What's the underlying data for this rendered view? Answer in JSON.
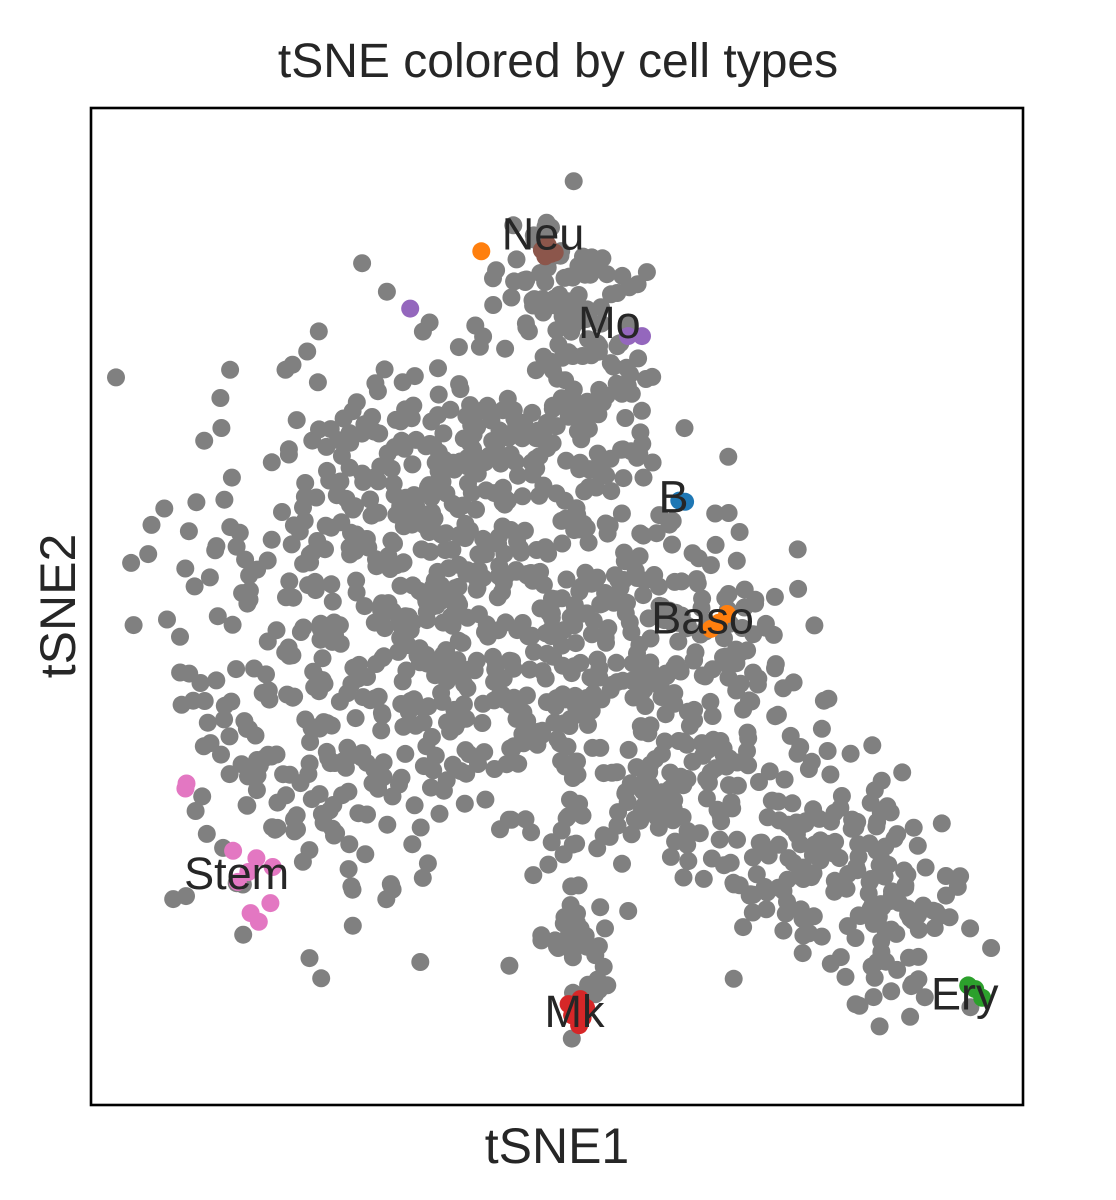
{
  "chart_data": {
    "type": "scatter",
    "title": "tSNE colored by cell types",
    "xlabel": "tSNE1",
    "ylabel": "tSNE2",
    "xlim": [
      -40,
      40
    ],
    "ylim": [
      -40,
      40
    ],
    "grid": false,
    "legend": "none (labels placed on clusters)",
    "background_color": "#808080",
    "background_cells": 1400,
    "clusters": [
      {
        "name": "Neu",
        "color": "#8c564b",
        "label_pos": [
          -1.2,
          29.6
        ],
        "x": [
          -1.3,
          -0.8,
          -0.2,
          -1.0,
          -0.5
        ],
        "y": [
          28.6,
          29.0,
          28.4,
          28.1,
          28.3
        ]
      },
      {
        "name": "Mo",
        "color": "#9467bd",
        "label_pos": [
          4.5,
          22.5
        ],
        "x": [
          6.1,
          7.3,
          -12.6
        ],
        "y": [
          21.7,
          21.7,
          23.9
        ]
      },
      {
        "name": "B",
        "color": "#1f77b4",
        "label_pos": [
          10.0,
          8.5
        ],
        "x": [
          10.5,
          11.0
        ],
        "y": [
          8.5,
          8.4
        ]
      },
      {
        "name": "Baso",
        "color": "#ff7f0e",
        "label_pos": [
          12.5,
          -1.2
        ],
        "x": [
          13.2,
          13.9,
          14.6,
          -6.5
        ],
        "y": [
          -1.8,
          -1.3,
          -0.6,
          28.5
        ]
      },
      {
        "name": "Stem",
        "color": "#e377c2",
        "label_pos": [
          -27.5,
          -21.7
        ],
        "x": [
          -31.9,
          -31.8,
          -27.8,
          -26.5,
          -24.4,
          -26.3,
          -25.6,
          -24.6,
          -27.4,
          -25.8
        ],
        "y": [
          -14.6,
          -14.2,
          -19.6,
          -21.3,
          -20.9,
          -24.6,
          -25.3,
          -23.8,
          -22.1,
          -20.2
        ]
      },
      {
        "name": "Mk",
        "color": "#d62728",
        "label_pos": [
          1.5,
          -32.8
        ],
        "x": [
          1.0,
          1.5,
          2.0,
          2.5,
          1.3,
          2.2,
          1.9
        ],
        "y": [
          -31.9,
          -32.4,
          -31.5,
          -32.2,
          -32.8,
          -33.0,
          -33.6
        ]
      },
      {
        "name": "Ery",
        "color": "#2ca02c",
        "label_pos": [
          35.0,
          -31.4
        ],
        "x": [
          35.3,
          35.9,
          36.5
        ],
        "y": [
          -30.4,
          -30.7,
          -31.4
        ]
      }
    ]
  }
}
